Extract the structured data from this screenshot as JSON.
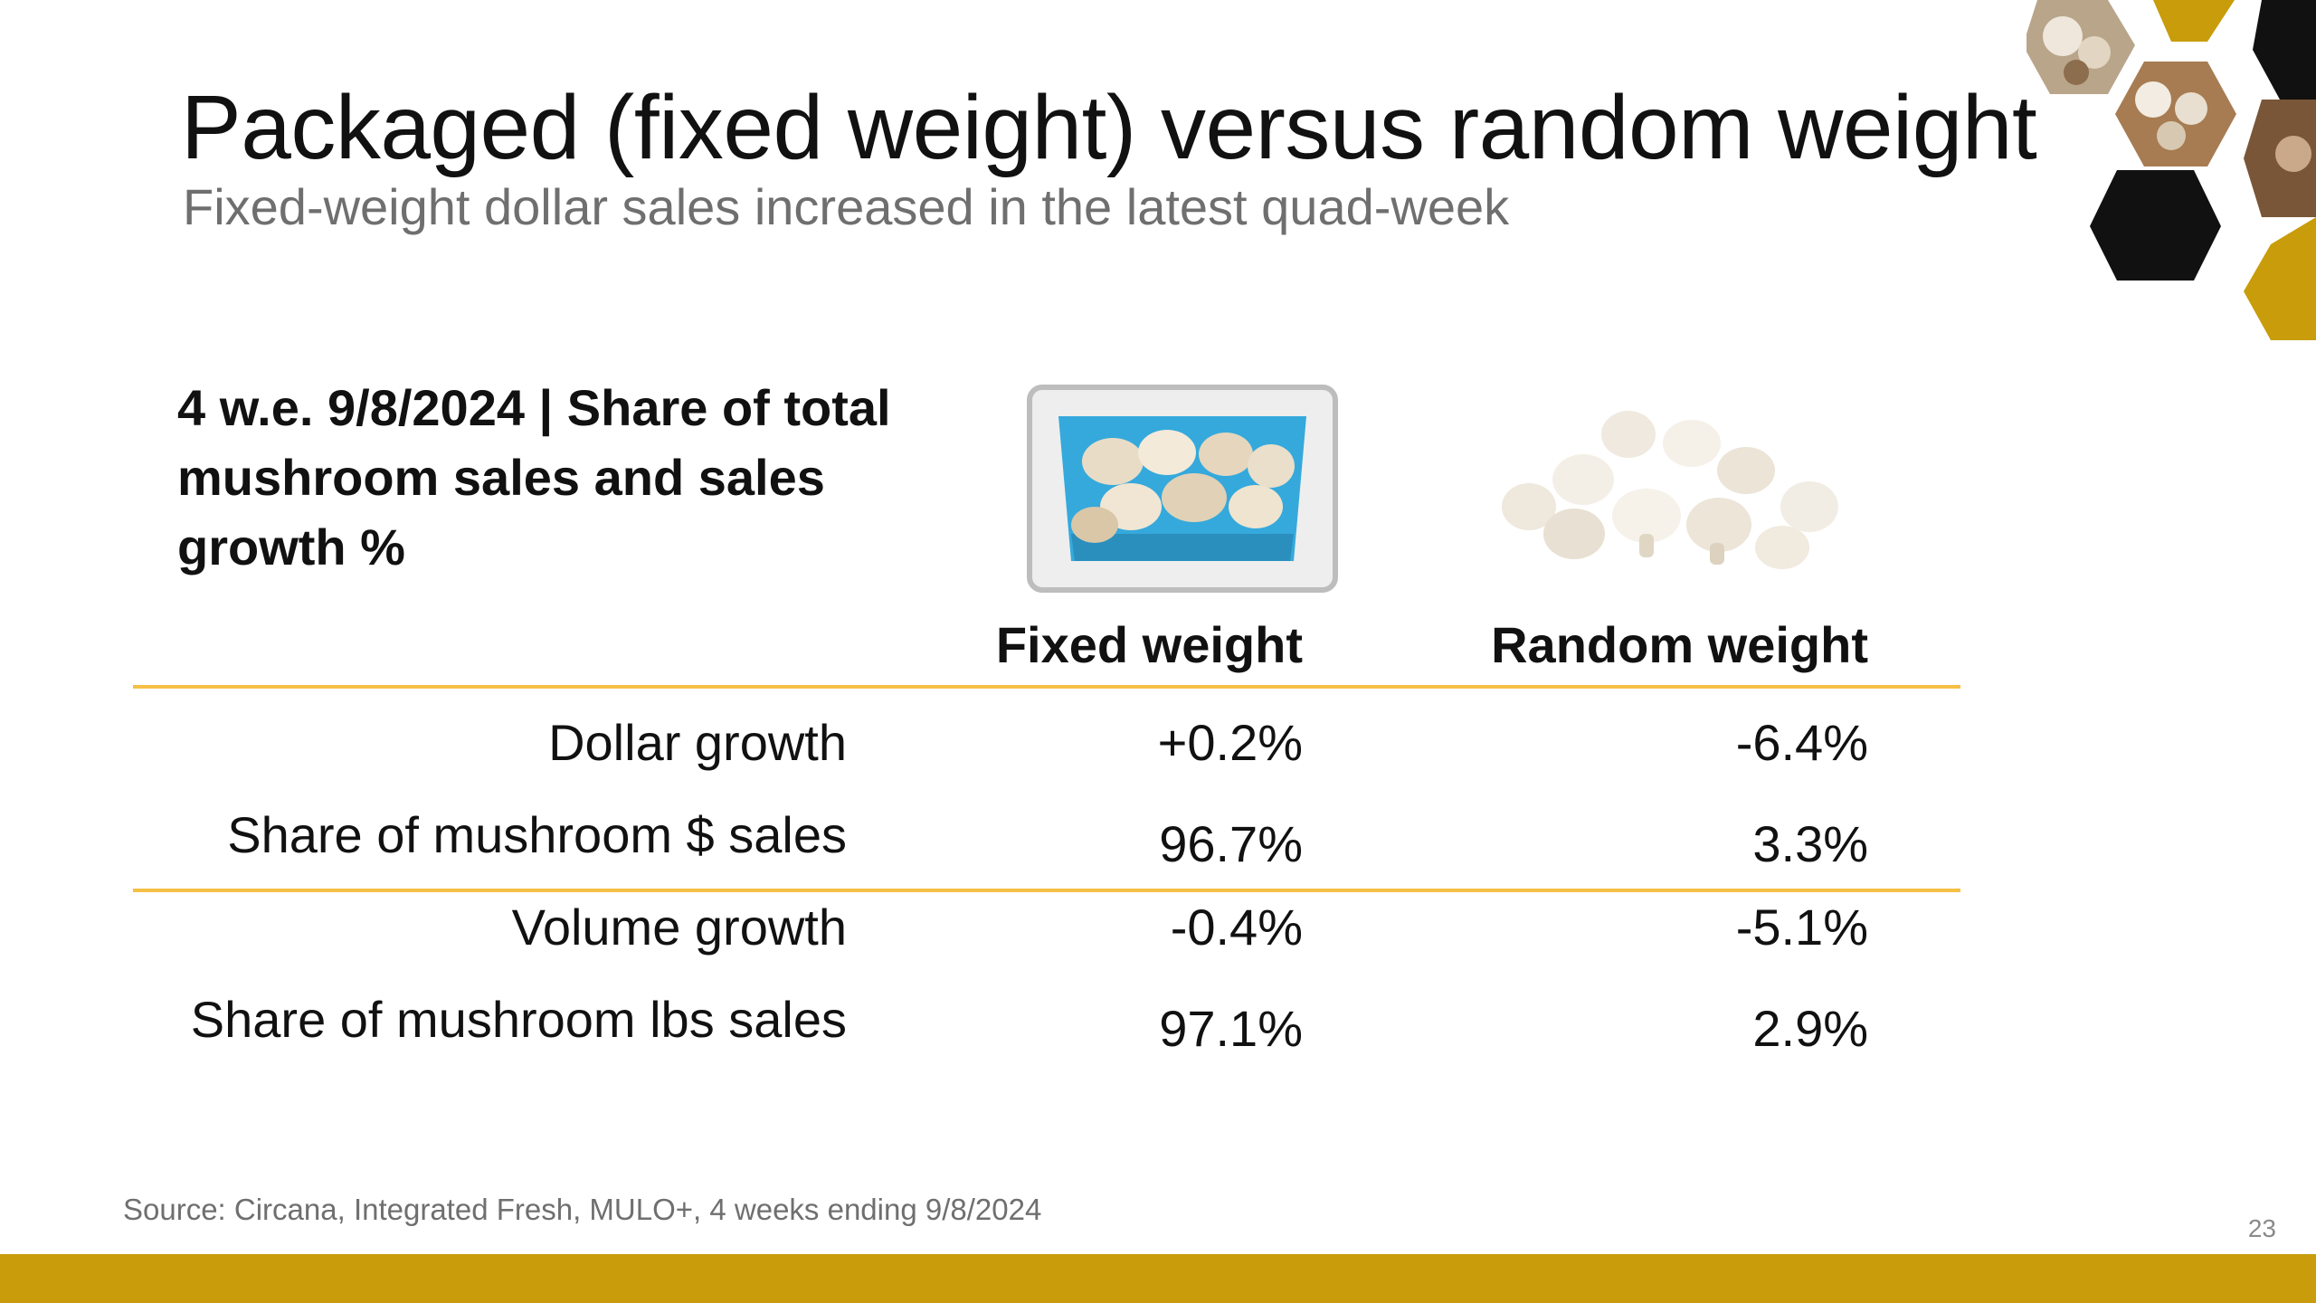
{
  "slide": {
    "title": "Packaged (fixed weight) versus random weight",
    "subtitle": "Fixed-weight dollar sales increased in the latest quad-week",
    "page_number": "23",
    "source": "Source: Circana, Integrated Fresh, MULO+, 4 weeks ending 9/8/2024"
  },
  "table": {
    "heading": "4 w.e. 9/8/2024 | Share of total mushroom sales and sales growth %",
    "columns": [
      "Fixed weight",
      "Random weight"
    ],
    "rows": [
      {
        "label": "Dollar growth",
        "fixed": "+0.2%",
        "random": "-6.4%"
      },
      {
        "label": "Share of mushroom $ sales",
        "fixed": "96.7%",
        "random": "3.3%"
      },
      {
        "label": "Volume growth",
        "fixed": "-0.4%",
        "random": "-5.1%"
      },
      {
        "label": "Share of mushroom lbs sales",
        "fixed": "97.1%",
        "random": "2.9%"
      }
    ]
  },
  "images": {
    "fixed_weight_photo": "mushroom-carton-photo",
    "random_weight_photo": "loose-mushrooms-photo",
    "decoration": "honeycomb-mushroom-decoration"
  },
  "colors": {
    "accent_gold": "#c89c0a",
    "rule_yellow": "#f5c044",
    "hex_black": "#111111",
    "carton_blue": "#35a9dc"
  }
}
